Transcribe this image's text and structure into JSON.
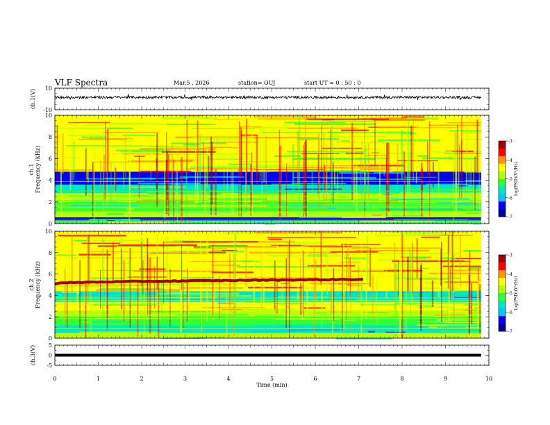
{
  "header": {
    "title": "VLF Spectra",
    "date": "Mar.5  , 2026",
    "station": "station= OUJ",
    "start_ut": "start  UT  =   0  : 50 : 0"
  },
  "colors": {
    "background": "#ffffff",
    "axes": "#000000",
    "spectrogram_colormap": [
      "#0000a0",
      "#0000ff",
      "#00c8ff",
      "#00e6c8",
      "#32ff32",
      "#b4ff00",
      "#ffff00",
      "#ff9600",
      "#ff0000",
      "#a00000"
    ]
  },
  "chart_data": [
    {
      "type": "line",
      "panel": "ch1-waveform",
      "ylabel": "ch.1(V)",
      "ylim": [
        -10,
        10
      ],
      "yticks": [
        "10",
        "-10"
      ],
      "xlim": [
        0,
        10
      ],
      "series": [
        {
          "description_level_V": 1.5,
          "amplitude_V": 1.2,
          "ends_at_min": 9.82
        }
      ]
    },
    {
      "type": "heatmap",
      "panel": "ch1-spectrogram",
      "ylabel": "ch.1\nFrequency  (kHz)",
      "ylim": [
        0,
        10
      ],
      "yticks": [
        "0",
        "2",
        "4",
        "6",
        "8",
        "10"
      ],
      "xlim": [
        0,
        10
      ],
      "data_ends_at_min": 9.82,
      "bands": [
        {
          "from_kHz": 0.0,
          "to_kHz": 0.3,
          "level": -5.2
        },
        {
          "from_kHz": 0.3,
          "to_kHz": 0.6,
          "level": -6.5
        },
        {
          "from_kHz": 0.6,
          "to_kHz": 1.0,
          "level": -4.7
        },
        {
          "from_kHz": 1.0,
          "to_kHz": 2.0,
          "level": -5.3
        },
        {
          "from_kHz": 2.0,
          "to_kHz": 2.8,
          "level": -4.9
        },
        {
          "from_kHz": 2.8,
          "to_kHz": 3.6,
          "level": -5.6
        },
        {
          "from_kHz": 3.6,
          "to_kHz": 4.8,
          "level": -6.3
        },
        {
          "from_kHz": 4.8,
          "to_kHz": 10.0,
          "level": -4.5
        }
      ],
      "colorbar": {
        "label": "log(PSD)(V²/Hz)",
        "range": [
          -7,
          -3
        ],
        "ticks": [
          "-3",
          "-4",
          "-5",
          "-6",
          "-7"
        ]
      }
    },
    {
      "type": "heatmap",
      "panel": "ch2-spectrogram",
      "ylabel": "ch.2\nFrequency  (kHz)",
      "ylim": [
        0,
        10
      ],
      "yticks": [
        "0",
        "2",
        "4",
        "6",
        "8",
        "10"
      ],
      "xlim": [
        0,
        10
      ],
      "data_ends_at_min": 9.82,
      "bands": [
        {
          "from_kHz": 0.0,
          "to_kHz": 0.5,
          "level": -5.0
        },
        {
          "from_kHz": 0.5,
          "to_kHz": 1.2,
          "level": -5.5
        },
        {
          "from_kHz": 1.2,
          "to_kHz": 2.0,
          "level": -5.2
        },
        {
          "from_kHz": 2.0,
          "to_kHz": 2.6,
          "level": -4.8
        },
        {
          "from_kHz": 2.6,
          "to_kHz": 3.4,
          "level": -4.6
        },
        {
          "from_kHz": 3.4,
          "to_kHz": 4.4,
          "level": -5.5
        },
        {
          "from_kHz": 4.4,
          "to_kHz": 10.0,
          "level": -4.4
        }
      ],
      "emission_line": {
        "start_min": 0.0,
        "end_min": 7.1,
        "start_kHz": 5.1,
        "end_kHz": 5.5,
        "level": -3.4
      },
      "colorbar": {
        "label": "log(PSD)(V²/Hz)",
        "range": [
          -7,
          -3
        ],
        "ticks": [
          "-3",
          "-4",
          "-5",
          "-6",
          "-7"
        ]
      }
    },
    {
      "type": "line",
      "panel": "ch3-waveform",
      "ylabel": "ch.3(V)",
      "ylim": [
        -5,
        5
      ],
      "yticks": [
        "5",
        "0",
        "-5"
      ],
      "xlim": [
        0,
        10
      ],
      "series": [
        {
          "constant_V": 0.0,
          "ends_at_min": 9.82
        }
      ]
    }
  ],
  "xaxis": {
    "label": "Time  (min)",
    "ticks": [
      "0",
      "1",
      "2",
      "3",
      "4",
      "5",
      "6",
      "7",
      "8",
      "9",
      "10"
    ]
  }
}
